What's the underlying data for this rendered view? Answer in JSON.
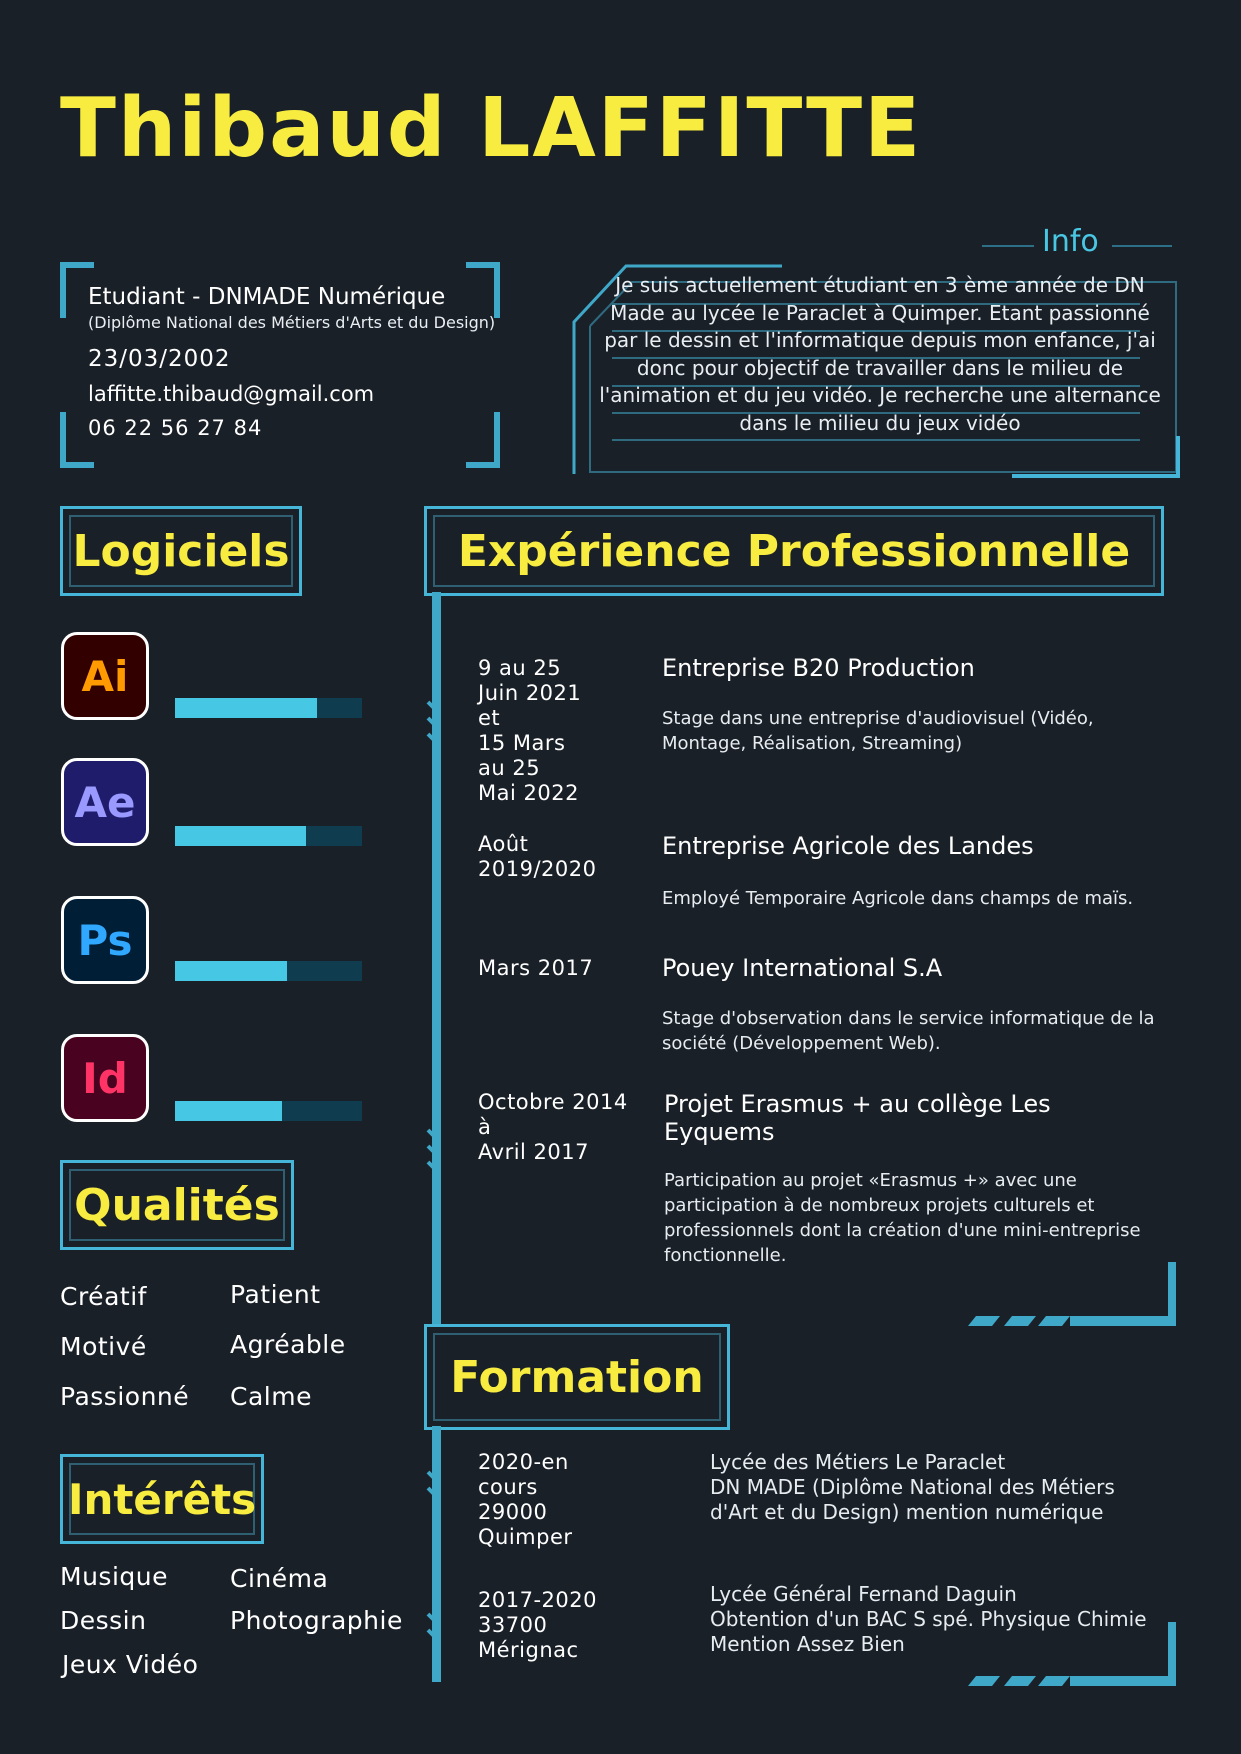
{
  "name": "Thibaud LAFFITTE",
  "identity": {
    "title": "Etudiant - DNMADE Numérique",
    "subtitle": "(Diplôme National des Métiers d'Arts et du Design)",
    "birthdate": "23/03/2002",
    "email": "laffitte.thibaud@gmail.com",
    "phone": "06 22 56 27 84"
  },
  "info": {
    "title": "Info",
    "text": "Je suis actuellement étudiant en 3 ème année de DN Made au lycée le Paraclet à Quimper. Etant passionné par le dessin et l'informatique depuis mon enfance, j'ai donc pour objectif de travailler dans le milieu de l'animation et du jeu vidéo. Je recherche une alternance dans le milieu du jeux vidéo"
  },
  "software": {
    "title": "Logiciels",
    "items": [
      {
        "abbr": "Ai",
        "level": 0.76,
        "fg": "#ff9a00",
        "bg": "#330000"
      },
      {
        "abbr": "Ae",
        "level": 0.7,
        "fg": "#9999ff",
        "bg": "#1f1d6b"
      },
      {
        "abbr": "Ps",
        "level": 0.6,
        "fg": "#31a8ff",
        "bg": "#001e36"
      },
      {
        "abbr": "Id",
        "level": 0.57,
        "fg": "#ff3366",
        "bg": "#49021f"
      }
    ]
  },
  "qualities": {
    "title": "Qualités",
    "col1": [
      "Créatif",
      "Motivé",
      "Passionné"
    ],
    "col2": [
      "Patient",
      "Agréable",
      "Calme"
    ]
  },
  "interests": {
    "title": "Intérêts",
    "col1": [
      "Musique",
      "Dessin",
      "Jeux Vidéo"
    ],
    "col2": [
      "Cinéma",
      "Photographie"
    ]
  },
  "experience": {
    "title": "Expérience Professionnelle",
    "items": [
      {
        "date": "9 au 25\nJuin 2021\net\n15 Mars\nau 25\nMai 2022",
        "title": "Entreprise B20 Production",
        "desc": "Stage dans une entreprise d'audiovisuel (Vidéo, Montage, Réalisation, Streaming)"
      },
      {
        "date": "Août\n2019/2020",
        "title": "Entreprise Agricole des Landes",
        "desc": "Employé Temporaire Agricole dans champs de maïs."
      },
      {
        "date": "Mars 2017",
        "title": "Pouey International S.A",
        "desc": "Stage d'observation dans le service informatique de la société (Développement Web)."
      },
      {
        "date": "Octobre 2014\nà\nAvril 2017",
        "title": "Projet Erasmus + au collège Les Eyquems",
        "desc": "Participation au projet «Erasmus +» avec une participation à de nombreux projets culturels et professionnels dont la création d'une mini-entreprise fonctionnelle."
      }
    ]
  },
  "education": {
    "title": "Formation",
    "items": [
      {
        "date": "2020-en\ncours\n29000\nQuimper",
        "text": "Lycée des Métiers Le Paraclet\nDN MADE (Diplôme National des Métiers d'Art et du Design) mention numérique"
      },
      {
        "date": "2017-2020\n33700\nMérignac",
        "text": "Lycée Général Fernand Daguin\nObtention d'un BAC S spé. Physique Chimie\nMention Assez Bien"
      }
    ]
  }
}
